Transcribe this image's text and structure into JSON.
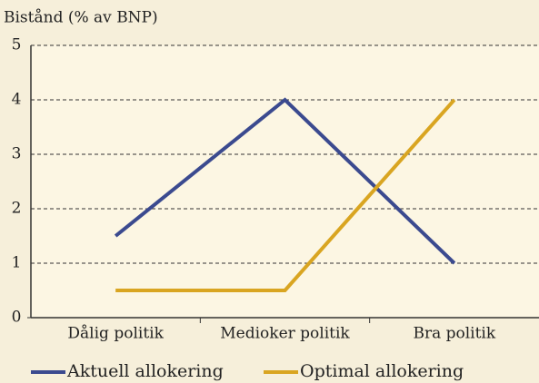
{
  "chart_data": {
    "type": "line",
    "title": "Bistånd (% av BNP)",
    "categories": [
      "Dålig politik",
      "Medioker politik",
      "Bra politik"
    ],
    "series": [
      {
        "name": "Aktuell allokering",
        "color": "#3b4a8f",
        "values": [
          1.5,
          4,
          1
        ]
      },
      {
        "name": "Optimal allokering",
        "color": "#d9a521",
        "values": [
          0.5,
          0.5,
          4
        ]
      }
    ],
    "ylim": [
      0,
      5
    ],
    "yticks": [
      0,
      1,
      2,
      3,
      4,
      5
    ],
    "grid": true,
    "legend": "bottom"
  }
}
